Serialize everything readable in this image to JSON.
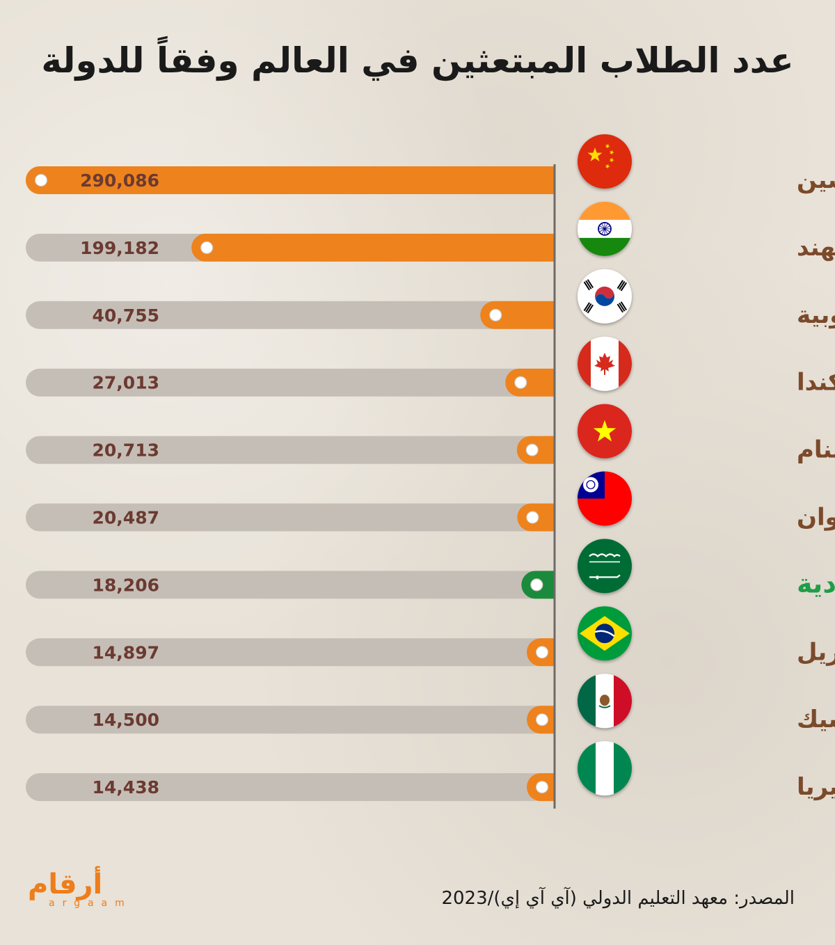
{
  "title": "عدد الطلاب المبتعثين في العالم وفقاً للدولة",
  "source": "المصدر: معهد التعليم الدولي (آي آي إي)/2023",
  "logo": {
    "arabic": "أرقام",
    "latin": "argaam"
  },
  "colors": {
    "bar": "#ee821c",
    "highlight_bar": "#1c8a3c",
    "track": "#c5beb6",
    "value_text": "#6b3a31",
    "country_text": "#7b4a2b",
    "highlight_text": "#1f9d48"
  },
  "chart_data": {
    "type": "bar",
    "orientation": "horizontal",
    "title": "عدد الطلاب المبتعثين في العالم وفقاً للدولة",
    "xlim": [
      0,
      290086
    ],
    "categories": [
      "الصين",
      "الهند",
      "كوريا الجنوبية",
      "كندا",
      "فيتنام",
      "تايوان",
      "السعودية",
      "البرازيل",
      "المكسيك",
      "نيجيريا"
    ],
    "values": [
      290086,
      199182,
      40755,
      27013,
      20713,
      20487,
      18206,
      14897,
      14500,
      14438
    ],
    "value_labels": [
      "290,086",
      "199,182",
      "40,755",
      "27,013",
      "20,713",
      "20,487",
      "18,206",
      "14,897",
      "14,500",
      "14,438"
    ],
    "highlight": "السعودية",
    "flag_icons": [
      "china-flag-icon",
      "india-flag-icon",
      "south-korea-flag-icon",
      "canada-flag-icon",
      "vietnam-flag-icon",
      "taiwan-flag-icon",
      "saudi-arabia-flag-icon",
      "brazil-flag-icon",
      "mexico-flag-icon",
      "nigeria-flag-icon"
    ]
  }
}
